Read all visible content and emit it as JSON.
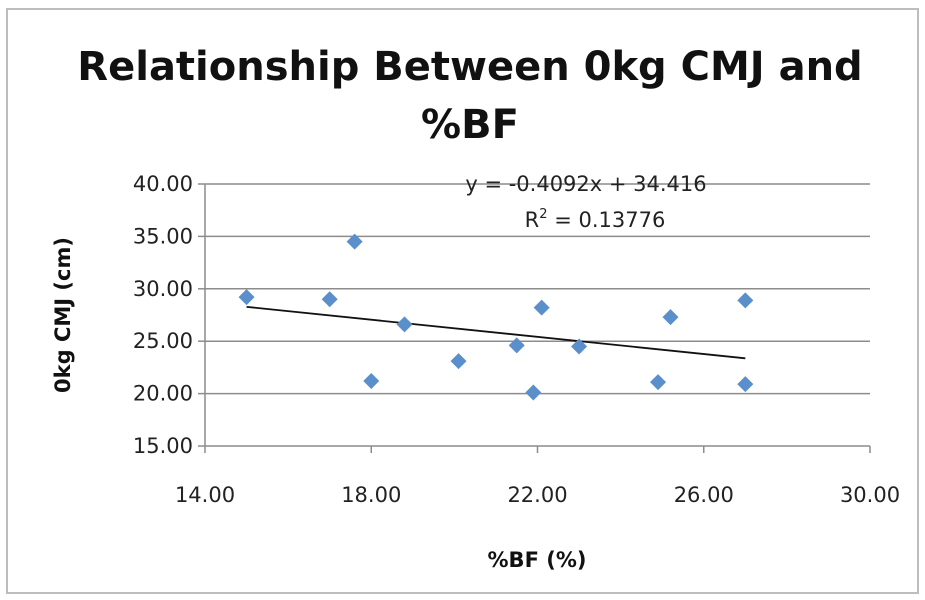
{
  "chart_data": {
    "type": "scatter",
    "title_lines": [
      "Relationship Between 0kg CMJ and",
      "%BF"
    ],
    "xlabel": "%BF (%)",
    "ylabel": "0kg CMJ (cm)",
    "xlim": [
      14,
      30
    ],
    "ylim": [
      15,
      40
    ],
    "x_ticks": [
      14,
      18,
      22,
      26,
      30
    ],
    "x_tick_labels": [
      "14.00",
      "18.00",
      "22.00",
      "26.00",
      "30.00"
    ],
    "y_ticks": [
      15,
      20,
      25,
      30,
      35,
      40
    ],
    "y_tick_labels": [
      "15.00",
      "20.00",
      "25.00",
      "30.00",
      "35.00",
      "40.00"
    ],
    "grid": {
      "horizontal": true,
      "vertical": false
    },
    "legend": "none",
    "marker_color": "#5b8fcb",
    "series": [
      {
        "points": [
          {
            "x": 15.0,
            "y": 29.2
          },
          {
            "x": 17.0,
            "y": 29.0
          },
          {
            "x": 17.6,
            "y": 34.5
          },
          {
            "x": 18.0,
            "y": 21.2
          },
          {
            "x": 18.8,
            "y": 26.6
          },
          {
            "x": 20.1,
            "y": 23.1
          },
          {
            "x": 21.5,
            "y": 24.6
          },
          {
            "x": 21.9,
            "y": 20.1
          },
          {
            "x": 22.1,
            "y": 28.2
          },
          {
            "x": 23.0,
            "y": 24.5
          },
          {
            "x": 24.9,
            "y": 21.1
          },
          {
            "x": 25.2,
            "y": 27.3
          },
          {
            "x": 27.0,
            "y": 28.9
          },
          {
            "x": 27.0,
            "y": 20.9
          }
        ]
      }
    ],
    "trendline": {
      "slope": -0.4092,
      "intercept": 34.416,
      "x_range": [
        15.0,
        27.0
      ],
      "color": "#111111",
      "equation_label": "y = -0.4092x + 34.416",
      "r2_prefix": "R",
      "r2_sup": "2",
      "r2_value": " = 0.13776"
    }
  }
}
